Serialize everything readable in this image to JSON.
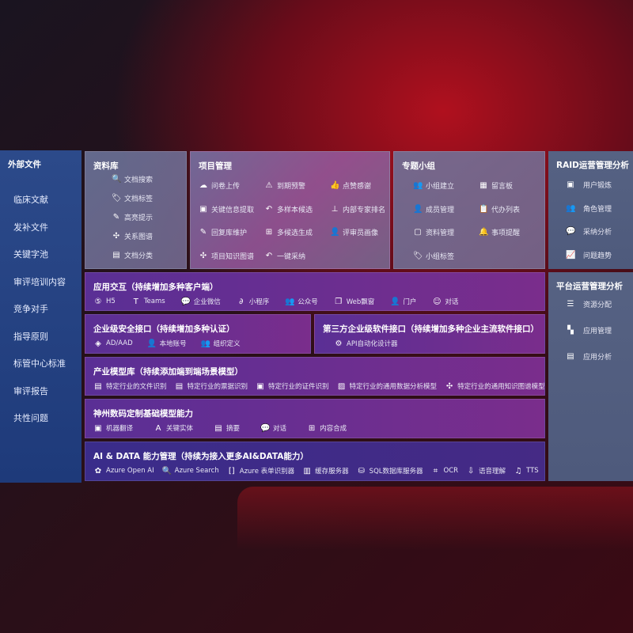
{
  "sidebar": {
    "title": "外部文件",
    "items": [
      "临床文献",
      "发补文件",
      "关键字池",
      "审评培训内容",
      "竞争对手",
      "指导原则",
      "标管中心标准",
      "审评报告",
      "共性问题"
    ]
  },
  "library": {
    "title": "资料库",
    "items": [
      {
        "label": "文档搜索",
        "icon": "document-search-icon",
        "g": "🔍"
      },
      {
        "label": "文档标签",
        "icon": "tag-icon",
        "g": "🏷"
      },
      {
        "label": "高亮提示",
        "icon": "pen-icon",
        "g": "✎"
      },
      {
        "label": "关系图谱",
        "icon": "graph-icon",
        "g": "✣"
      },
      {
        "label": "文档分类",
        "icon": "document-icon",
        "g": "▤"
      }
    ]
  },
  "project": {
    "title": "项目管理",
    "items": [
      {
        "label": "问卷上传",
        "icon": "cloud-upload-icon",
        "g": "☁"
      },
      {
        "label": "到期预警",
        "icon": "alarm-icon",
        "g": "⚠"
      },
      {
        "label": "点赞感谢",
        "icon": "thumbs-up-icon",
        "g": "👍"
      },
      {
        "label": "关键信息提取",
        "icon": "window-icon",
        "g": "▣"
      },
      {
        "label": "多样本候选",
        "icon": "reply-icon",
        "g": "↶"
      },
      {
        "label": "内部专家排名",
        "icon": "ranking-icon",
        "g": "⊥"
      },
      {
        "label": "回复库维护",
        "icon": "edit-icon",
        "g": "✎"
      },
      {
        "label": "多候选生成",
        "icon": "puzzle-icon",
        "g": "⊞"
      },
      {
        "label": "评审员画像",
        "icon": "user-icon",
        "g": "👤"
      },
      {
        "label": "项目知识图谱",
        "icon": "graph-icon",
        "g": "✣"
      },
      {
        "label": "一键采纳",
        "icon": "reply-icon",
        "g": "↶"
      }
    ]
  },
  "group": {
    "title": "专题小组",
    "items": [
      {
        "label": "小组建立",
        "icon": "users-icon",
        "g": "👥"
      },
      {
        "label": "留言板",
        "icon": "bbs-icon",
        "g": "▦"
      },
      {
        "label": "成员管理",
        "icon": "user-add-icon",
        "g": "👤"
      },
      {
        "label": "代办列表",
        "icon": "clipboard-icon",
        "g": "📋"
      },
      {
        "label": "资料管理",
        "icon": "folder-icon",
        "g": "▢"
      },
      {
        "label": "事项提醒",
        "icon": "bell-icon",
        "g": "🔔"
      },
      {
        "label": "小组标签",
        "icon": "tag-icon",
        "g": "🏷"
      }
    ]
  },
  "raid": {
    "title": "RAID运营管理分析",
    "items": [
      {
        "label": "用户锻炼",
        "icon": "id-card-icon",
        "g": "▣"
      },
      {
        "label": "角色管理",
        "icon": "users-icon",
        "g": "👥"
      },
      {
        "label": "采纳分析",
        "icon": "qa-icon",
        "g": "💬"
      },
      {
        "label": "问题趋势",
        "icon": "trend-icon",
        "g": "📈"
      }
    ]
  },
  "platform": {
    "title": "平台运营管理分析",
    "items": [
      {
        "label": "资源分配",
        "icon": "list-icon",
        "g": "☰"
      },
      {
        "label": "应用管理",
        "icon": "apps-icon",
        "g": "▚"
      },
      {
        "label": "应用分析",
        "icon": "chart-icon",
        "g": "▤"
      }
    ]
  },
  "interaction": {
    "title": "应用交互（持续增加多种客户端）",
    "items": [
      {
        "label": "H5",
        "icon": "html5-icon",
        "g": "⑤"
      },
      {
        "label": "Teams",
        "icon": "teams-icon",
        "g": "T"
      },
      {
        "label": "企业微信",
        "icon": "wecom-icon",
        "g": "💬"
      },
      {
        "label": "小程序",
        "icon": "miniprogram-icon",
        "g": "∂"
      },
      {
        "label": "公众号",
        "icon": "users-icon",
        "g": "👥"
      },
      {
        "label": "Web飘窗",
        "icon": "window-icon",
        "g": "❐"
      },
      {
        "label": "门户",
        "icon": "portal-icon",
        "g": "👤"
      },
      {
        "label": "对话",
        "icon": "chat-icon",
        "g": "☺"
      }
    ]
  },
  "security": {
    "title": "企业级安全接口（持续增加多种认证）",
    "items": [
      {
        "label": "AD/AAD",
        "icon": "diamond-icon",
        "g": "◈"
      },
      {
        "label": "本地账号",
        "icon": "user-icon",
        "g": "👤"
      },
      {
        "label": "组织定义",
        "icon": "org-icon",
        "g": "👥"
      }
    ]
  },
  "thirdparty": {
    "title": "第三方企业级软件接口（持续增加多种企业主流软件接口）",
    "items": [
      {
        "label": "API自动化设计器",
        "icon": "gear-icon",
        "g": "⚙"
      }
    ]
  },
  "industry": {
    "title": "产业模型库（持续添加端到端场景模型）",
    "items": [
      {
        "label": "特定行业的文件识别",
        "icon": "file-icon",
        "g": "▤"
      },
      {
        "label": "特定行业的票据识别",
        "icon": "receipt-icon",
        "g": "▤"
      },
      {
        "label": "特定行业的证件识别",
        "icon": "id-card-icon",
        "g": "▣"
      },
      {
        "label": "特定行业的通用数据分析模型",
        "icon": "image-icon",
        "g": "▨"
      },
      {
        "label": "特定行业的通用知识图谱模型",
        "icon": "graph-icon",
        "g": "✣"
      }
    ]
  },
  "base": {
    "title": "神州数码定制基础模型能力",
    "items": [
      {
        "label": "机器翻译",
        "icon": "translate-icon",
        "g": "▣"
      },
      {
        "label": "关键实体",
        "icon": "entity-icon",
        "g": "A"
      },
      {
        "label": "摘要",
        "icon": "document-icon",
        "g": "▤"
      },
      {
        "label": "对话",
        "icon": "chat-icon",
        "g": "💬"
      },
      {
        "label": "内容合成",
        "icon": "puzzle-icon",
        "g": "⊞"
      }
    ]
  },
  "ai": {
    "title": "AI & DATA 能力管理（持续为接入更多AI&DATA能力）",
    "items": [
      {
        "label": "Azure Open AI",
        "icon": "openai-icon",
        "g": "✿"
      },
      {
        "label": "Azure Search",
        "icon": "search-icon",
        "g": "🔍"
      },
      {
        "label": "Azure 表单识别器",
        "icon": "form-icon",
        "g": "[]"
      },
      {
        "label": "缓存服务器",
        "icon": "server-icon",
        "g": "▥"
      },
      {
        "label": "SQL数据库服务器",
        "icon": "database-icon",
        "g": "⛁"
      },
      {
        "label": "OCR",
        "icon": "ocr-icon",
        "g": "⌗"
      },
      {
        "label": "语音理解",
        "icon": "voice-icon",
        "g": "⇩"
      },
      {
        "label": "TTS",
        "icon": "tts-icon",
        "g": "♫"
      }
    ]
  }
}
